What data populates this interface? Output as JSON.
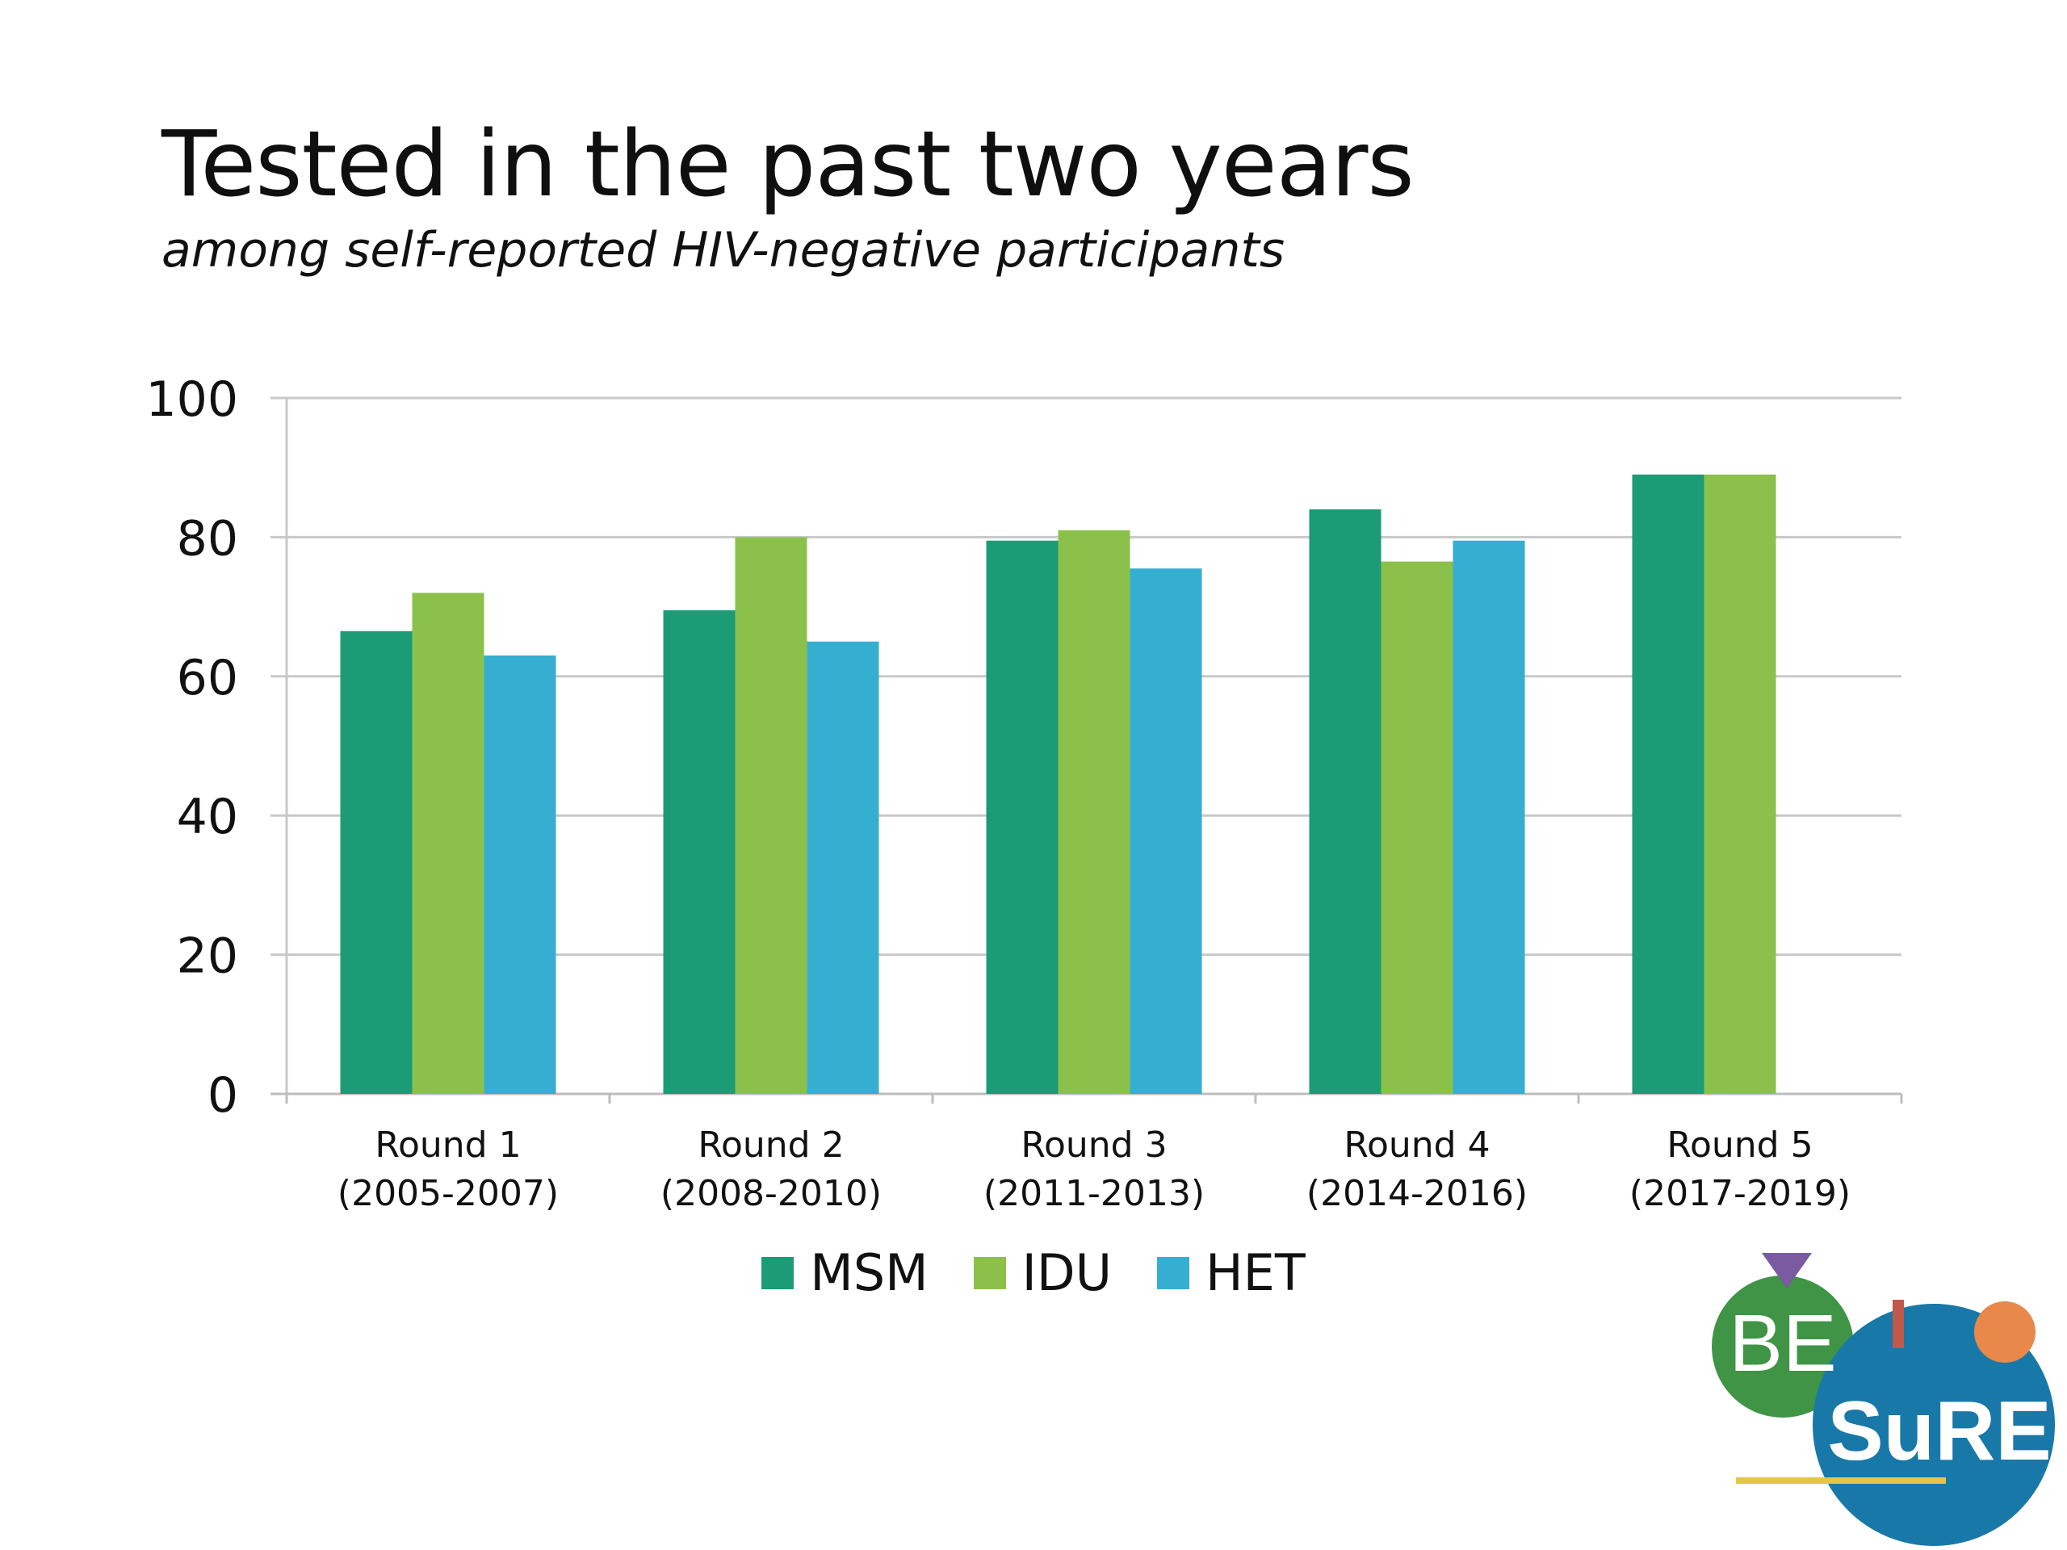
{
  "title": "Tested in the past two years",
  "subtitle": "among self-reported HIV-negative participants",
  "logo": {
    "text_top": "BE",
    "text_bottom": "SuRE"
  },
  "colors": {
    "MSM": "#1b9b76",
    "IDU": "#8bc14a",
    "HET": "#36aed2"
  },
  "chart_data": {
    "type": "bar",
    "categories": [
      [
        "Round 1",
        "(2005-2007)"
      ],
      [
        "Round 2",
        "(2008-2010)"
      ],
      [
        "Round 3",
        "(2011-2013)"
      ],
      [
        "Round 4",
        "(2014-2016)"
      ],
      [
        "Round 5",
        "(2017-2019)"
      ]
    ],
    "series": [
      {
        "name": "MSM",
        "values": [
          66.5,
          69.5,
          79.5,
          84,
          89
        ]
      },
      {
        "name": "IDU",
        "values": [
          72,
          80,
          81,
          76.5,
          89
        ]
      },
      {
        "name": "HET",
        "values": [
          63,
          65,
          75.5,
          79.5,
          null
        ]
      }
    ],
    "ylim": [
      0,
      100
    ],
    "yticks": [
      0,
      20,
      40,
      60,
      80,
      100
    ],
    "grid": true,
    "legend_position": "bottom-center"
  }
}
